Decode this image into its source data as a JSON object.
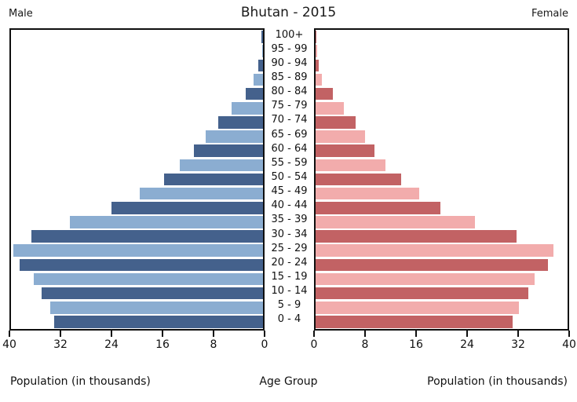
{
  "title": "Bhutan - 2015",
  "legend": {
    "male": "Male",
    "female": "Female"
  },
  "footer": {
    "left_axis_label": "Population (in thousands)",
    "center_label": "Age Group",
    "right_axis_label": "Population (in thousands)"
  },
  "colors": {
    "male_dark": "#44618c",
    "male_light": "#8badd1",
    "female_dark": "#c26264",
    "female_light": "#f2acac",
    "axis": "#0f0f0f"
  },
  "chart_data": {
    "type": "bar",
    "subtype": "population-pyramid",
    "title": "Bhutan - 2015",
    "xlabel": "Population (in thousands)",
    "center_axis_label": "Age Group",
    "grid": false,
    "x_axis": {
      "lim": [
        0,
        40
      ],
      "ticks": [
        0,
        8,
        16,
        24,
        32,
        40
      ],
      "unit": "thousands"
    },
    "row_color_rule": "rows alternate dark/light shades starting with dark at 100+ and ending dark at 0-4",
    "categories": [
      "100+",
      "95 - 99",
      "90 - 94",
      "85 - 89",
      "80 - 84",
      "75 - 79",
      "70 - 74",
      "65 - 69",
      "60 - 64",
      "55 - 59",
      "50 - 54",
      "45 - 49",
      "40 - 44",
      "35 - 39",
      "30 - 34",
      "25 - 29",
      "20 - 24",
      "15 - 19",
      "10 - 14",
      "5 - 9",
      "0 - 4"
    ],
    "series": [
      {
        "name": "Male",
        "side": "left",
        "values": [
          0.3,
          0.1,
          0.7,
          1.5,
          2.8,
          5.0,
          7.1,
          9.1,
          11.0,
          13.2,
          15.7,
          19.6,
          24.1,
          30.6,
          36.7,
          39.6,
          38.6,
          36.4,
          35.2,
          33.8,
          33.1
        ]
      },
      {
        "name": "Female",
        "side": "right",
        "values": [
          0.1,
          0.2,
          0.5,
          1.0,
          2.7,
          4.5,
          6.3,
          7.9,
          9.4,
          11.1,
          13.6,
          16.5,
          19.8,
          25.3,
          31.9,
          37.7,
          36.9,
          34.8,
          33.8,
          32.3,
          31.3
        ]
      }
    ]
  }
}
